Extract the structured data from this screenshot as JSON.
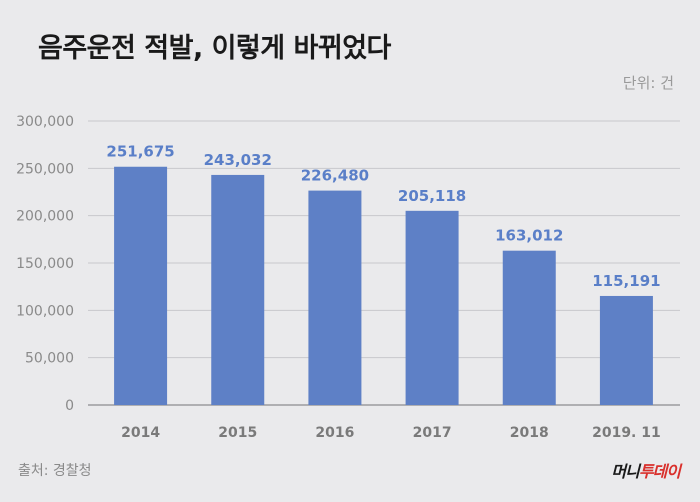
{
  "header": {
    "title": "음주운전 적발, 이렇게 바뀌었다",
    "unit": "단위: 건"
  },
  "footer": {
    "source": "출처: 경찰청",
    "logo_main": "머니",
    "logo_accent": "투데이"
  },
  "colors": {
    "bar": "#5e80c6",
    "value_label": "#5a7fc8",
    "gridline": "#c8c8cc"
  },
  "chart_data": {
    "type": "bar",
    "title": "음주운전 적발, 이렇게 바뀌었다",
    "xlabel": "",
    "ylabel": "",
    "unit": "단위: 건",
    "categories": [
      "2014",
      "2015",
      "2016",
      "2017",
      "2018",
      "2019. 11"
    ],
    "values": [
      251675,
      243032,
      226480,
      205118,
      163012,
      115191
    ],
    "value_labels": [
      "251,675",
      "243,032",
      "226,480",
      "205,118",
      "163,012",
      "115,191"
    ],
    "ylim": [
      0,
      300000
    ],
    "yticks": [
      0,
      50000,
      100000,
      150000,
      200000,
      250000,
      300000
    ],
    "ytick_labels": [
      "0",
      "50,000",
      "100,000",
      "150,000",
      "200,000",
      "250,000",
      "300,000"
    ],
    "grid": true,
    "legend": "none"
  }
}
